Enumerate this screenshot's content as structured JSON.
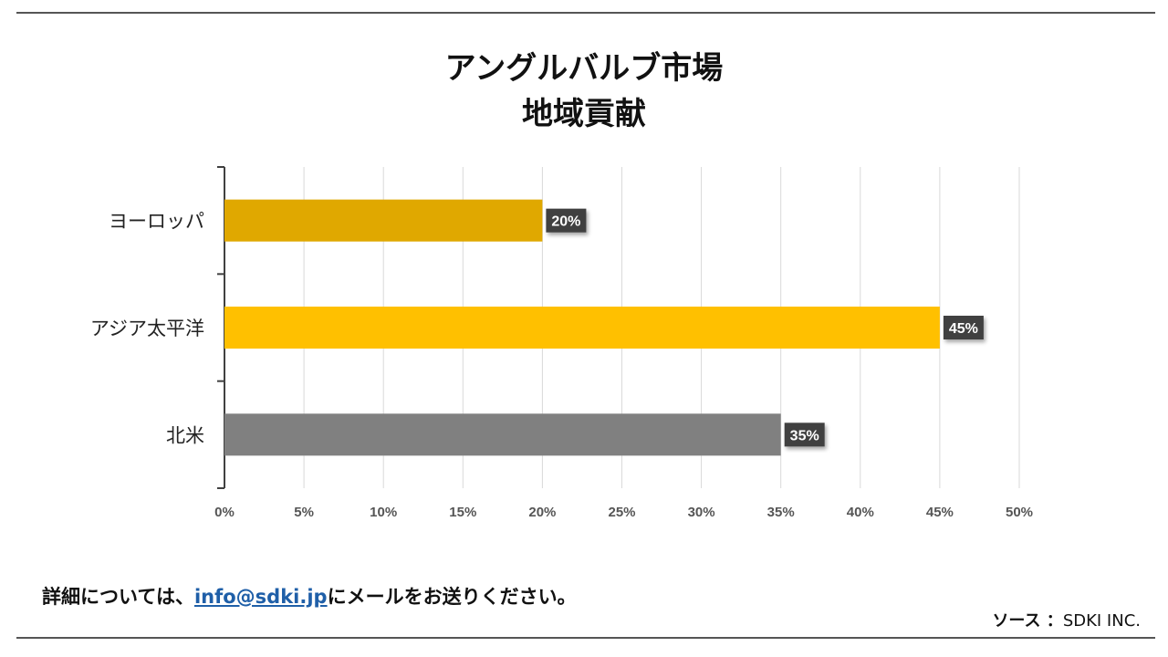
{
  "chart_data": {
    "type": "bar",
    "orientation": "horizontal",
    "title_line1": "アングルバルブ市場",
    "title_line2": "地域貢献",
    "categories": [
      "ヨーロッパ",
      "アジア太平洋",
      "北米"
    ],
    "values": [
      20,
      45,
      35
    ],
    "value_labels": [
      "20%",
      "45%",
      "35%"
    ],
    "bar_colors": [
      "#e0a800",
      "#ffc000",
      "#808080"
    ],
    "xlim": [
      0,
      50
    ],
    "xticks": [
      0,
      5,
      10,
      15,
      20,
      25,
      30,
      35,
      40,
      45,
      50
    ],
    "xtick_labels": [
      "0%",
      "5%",
      "10%",
      "15%",
      "20%",
      "25%",
      "30%",
      "35%",
      "40%",
      "45%",
      "50%"
    ],
    "grid": true,
    "legend": "none"
  },
  "footer": {
    "note_prefix": "詳細については、",
    "email": "info@sdki.jp",
    "note_suffix": "にメールをお送りください。",
    "source_label": "ソース ：",
    "source_value": "SDKI INC."
  },
  "colors": {
    "label_bg": "#404040",
    "grid": "#d9d9d9",
    "axis": "#404040"
  }
}
